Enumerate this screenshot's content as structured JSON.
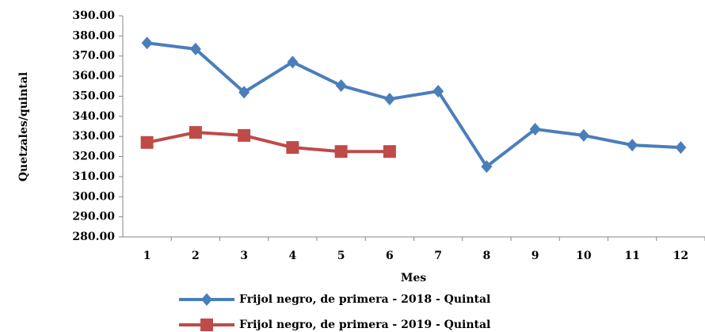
{
  "chart_data": {
    "type": "line",
    "y_label": "Quetzales/quintal",
    "x_label": "Mes",
    "categories": [
      "1",
      "2",
      "3",
      "4",
      "5",
      "6",
      "7",
      "8",
      "9",
      "10",
      "11",
      "12"
    ],
    "ylim": [
      280,
      390
    ],
    "yticks": [
      {
        "value": 280,
        "label": "280.00"
      },
      {
        "value": 290,
        "label": "290.00"
      },
      {
        "value": 300,
        "label": "300.00"
      },
      {
        "value": 310,
        "label": "310.00"
      },
      {
        "value": 320,
        "label": "320.00"
      },
      {
        "value": 330,
        "label": "330.00"
      },
      {
        "value": 340,
        "label": "340.00"
      },
      {
        "value": 350,
        "label": "350.00"
      },
      {
        "value": 360,
        "label": "360.00"
      },
      {
        "value": 370,
        "label": "370.00"
      },
      {
        "value": 380,
        "label": "380.00"
      },
      {
        "value": 390,
        "label": "390.00"
      }
    ],
    "grid": false,
    "legend": "bottom",
    "series": [
      {
        "name": "Frijol negro, de primera - 2018 - Quintal",
        "color": "#4a7ebb",
        "marker": "diamond",
        "values": [
          376.5,
          373.5,
          352,
          367,
          355.3,
          348.6,
          352.5,
          315,
          333.6,
          330.5,
          325.7,
          324.5
        ]
      },
      {
        "name": "Frijol negro, de primera - 2019 - Quintal",
        "color": "#be4b48",
        "marker": "square",
        "values": [
          327,
          332,
          330.5,
          324.5,
          322.5,
          322.5,
          null,
          null,
          null,
          null,
          null,
          null
        ]
      }
    ]
  }
}
